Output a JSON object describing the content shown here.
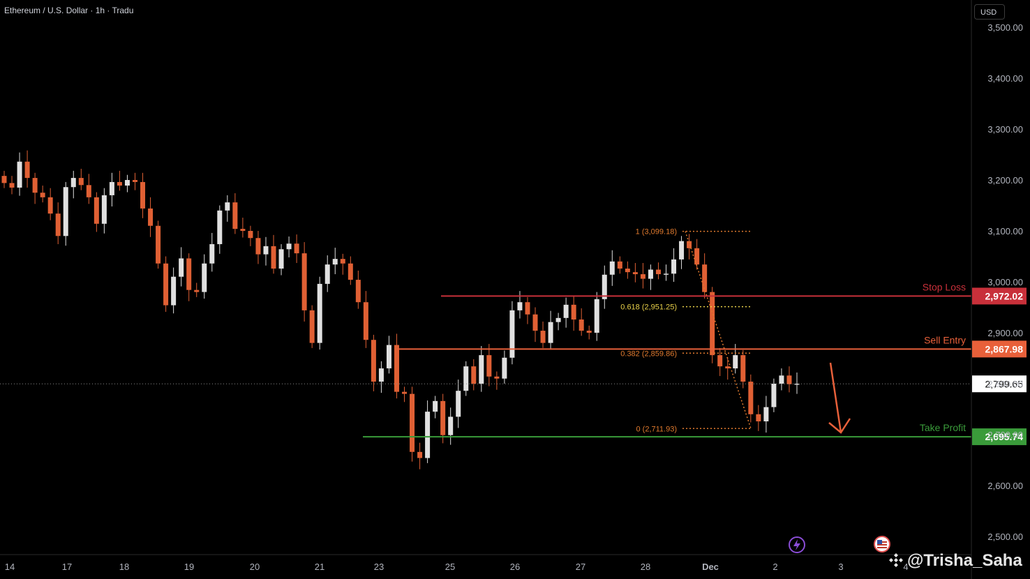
{
  "header": {
    "title": "Ethereum / U.S. Dollar · 1h · Tradu",
    "currency": "USD"
  },
  "watermark": {
    "text": "@Trisha_Saha",
    "icon": "binance-logo-icon"
  },
  "icons": {
    "bottom1": "lightning-icon",
    "bottom2": "us-flag-icon"
  },
  "colors": {
    "up": "#e0e0e0",
    "down": "#e06034",
    "stop": "#c8303a",
    "entry": "#e8603a",
    "target": "#3a9b3a",
    "fib": "#e07a2e",
    "fib618": "#e8d04a",
    "grid": "#222"
  },
  "chart_data": {
    "type": "candlestick",
    "xlabel_ticks": [
      "14",
      "17",
      "18",
      "19",
      "20",
      "21",
      "23",
      "25",
      "26",
      "27",
      "28",
      "Dec",
      "2",
      "3",
      "4"
    ],
    "yticks": [
      "3,500.00",
      "3,400.00",
      "3,300.00",
      "3,200.00",
      "3,100.00",
      "3,000.00",
      "2,900.00",
      "2,800.00",
      "2,700.00",
      "2,600.00",
      "2,500.00"
    ],
    "ylim": [
      2485,
      3548
    ],
    "current_price": "2,799.65",
    "levels": [
      {
        "name": "Stop Loss",
        "value": 2972.02,
        "label": "2,972.02"
      },
      {
        "name": "Sell Entry",
        "value": 2867.98,
        "label": "2,867.98"
      },
      {
        "name": "Take Profit",
        "value": 2695.74,
        "label": "2,695.74"
      }
    ],
    "fib": [
      {
        "label": "1 (3,099.18)",
        "value": 3099.18
      },
      {
        "label": "0.618 (2,951.25)",
        "value": 2951.25
      },
      {
        "label": "0.382 (2,859.86)",
        "value": 2859.86
      },
      {
        "label": "0 (2,711.93)",
        "value": 2711.93
      }
    ],
    "close_path": [
      3200,
      3185,
      3230,
      3210,
      3175,
      3160,
      3140,
      3090,
      3180,
      3210,
      3190,
      3160,
      3120,
      3170,
      3190,
      3195,
      3200,
      3190,
      3150,
      3110,
      3030,
      2960,
      3010,
      3040,
      2990,
      2980,
      3030,
      3080,
      3140,
      3150,
      3110,
      3100,
      3080,
      3060,
      3070,
      3020,
      3070,
      3075,
      3050,
      2950,
      2880,
      2990,
      3040,
      3045,
      3030,
      3010,
      2960,
      2880,
      2810,
      2830,
      2870,
      2790,
      2780,
      2660,
      2660,
      2745,
      2760,
      2705,
      2735,
      2780,
      2840,
      2800,
      2850,
      2820,
      2810,
      2845,
      2950,
      2960,
      2930,
      2910,
      2880,
      2915,
      2935,
      2955,
      2920,
      2910,
      2900,
      2960,
      3020,
      3040,
      3020,
      3025,
      3015,
      3000,
      3030,
      3015,
      3010,
      3050,
      3080,
      3060,
      3040,
      2980,
      2850,
      2840,
      2830,
      2850,
      2810,
      2740,
      2720,
      2760,
      2800,
      2810,
      2805,
      2800
    ]
  }
}
